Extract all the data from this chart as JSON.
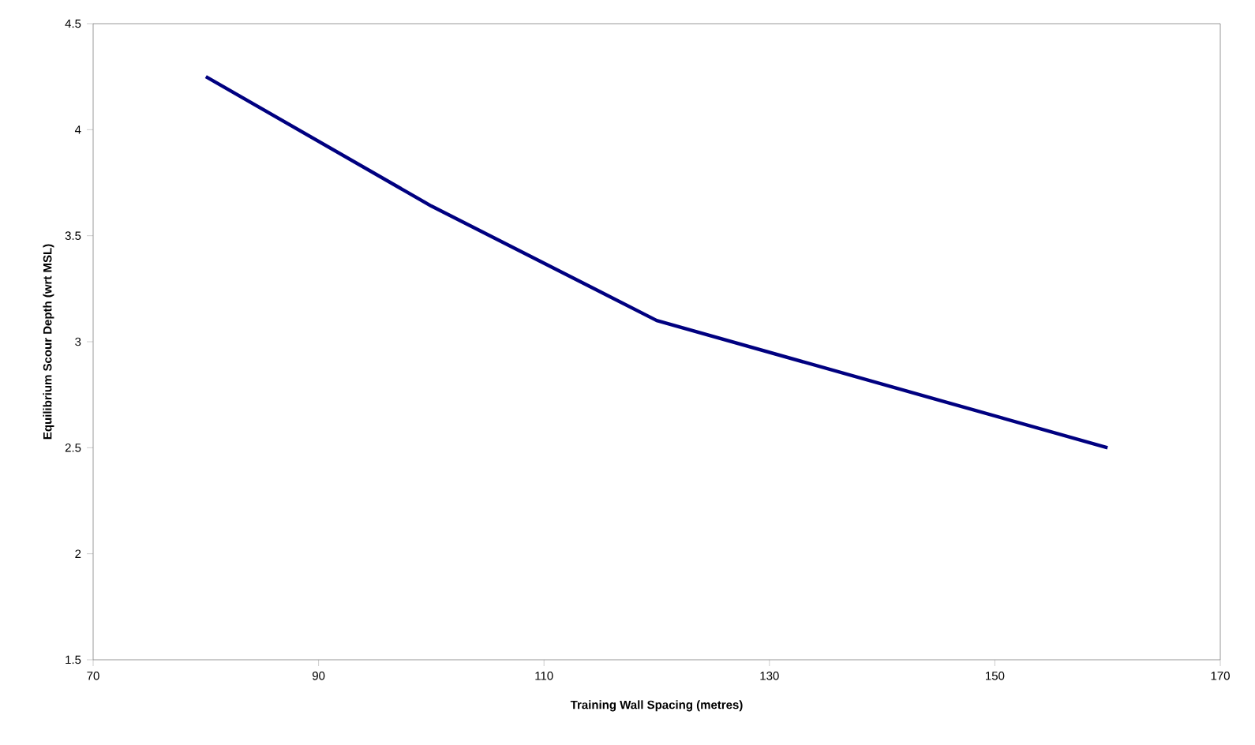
{
  "chart_data": {
    "type": "line",
    "xlabel": "Training Wall Spacing (metres)",
    "ylabel": "Equilibrium Scour Depth (wrt MSL)",
    "x": [
      80,
      100,
      120,
      160
    ],
    "series": [
      {
        "color": "#000080",
        "values": [
          4.25,
          3.64,
          3.1,
          2.5
        ]
      }
    ],
    "xlim": [
      70,
      170
    ],
    "xticks": [
      70,
      90,
      110,
      130,
      150,
      170
    ],
    "ylim": [
      1.5,
      4.5
    ],
    "yticks": [
      1.5,
      2,
      2.5,
      3,
      3.5,
      4,
      4.5
    ],
    "grid": false,
    "marker": "none",
    "line_style": "solid"
  }
}
